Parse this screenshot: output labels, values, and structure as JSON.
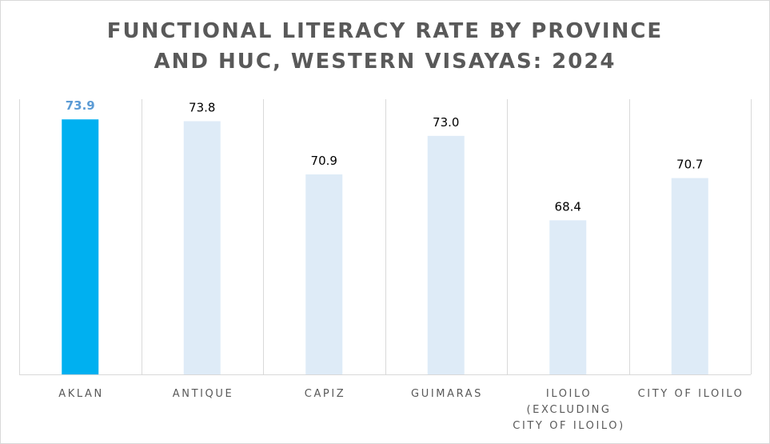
{
  "chart_data": {
    "type": "bar",
    "title_lines": [
      "FUNCTIONAL LITERACY RATE BY PROVINCE",
      "AND HUC, WESTERN VISAYAS: 2024"
    ],
    "categories": [
      [
        "AKLAN"
      ],
      [
        "ANTIQUE"
      ],
      [
        "CAPIZ"
      ],
      [
        "GUIMARAS"
      ],
      [
        "ILOILO",
        "(EXCLUDING",
        "CITY OF ILOILO)"
      ],
      [
        "CITY OF ILOILO"
      ]
    ],
    "values": [
      73.9,
      73.8,
      70.9,
      73.0,
      68.4,
      70.7
    ],
    "value_labels": [
      "73.9",
      "73.8",
      "70.9",
      "73.0",
      "68.4",
      "70.7"
    ],
    "highlight_index": 0,
    "colors": {
      "highlight": "#00b0f0",
      "default": "#deebf7",
      "highlight_label": "#5b9bd5",
      "gridline": "#d9d9d9"
    },
    "ylim": [
      60,
      75
    ],
    "grid": "vertical category separators",
    "legend": "none"
  }
}
